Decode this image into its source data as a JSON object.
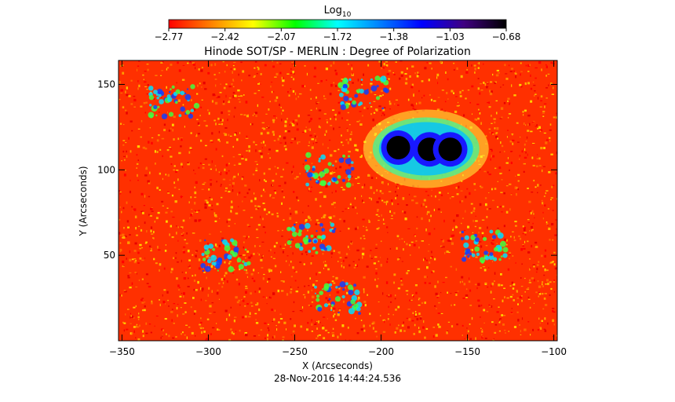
{
  "chart_data": {
    "type": "heatmap",
    "title": "Hinode SOT/SP - MERLIN : Degree of Polarization",
    "xlabel": "X (Arcseconds)",
    "ylabel": "Y (Arcseconds)",
    "timestamp": "28-Nov-2016 14:44:24.536",
    "xlim": [
      -352,
      -98
    ],
    "ylim": [
      0,
      164
    ],
    "x_ticks": [
      {
        "value": -350,
        "label": "−350"
      },
      {
        "value": -300,
        "label": "−300"
      },
      {
        "value": -250,
        "label": "−250"
      },
      {
        "value": -200,
        "label": "−200"
      },
      {
        "value": -150,
        "label": "−150"
      },
      {
        "value": -100,
        "label": "−100"
      }
    ],
    "y_ticks": [
      {
        "value": 50,
        "label": "50"
      },
      {
        "value": 100,
        "label": "100"
      },
      {
        "value": 150,
        "label": "150"
      }
    ],
    "colorbar": {
      "label_base": "Log",
      "label_sub": "10",
      "range": [
        -2.77,
        -0.68
      ],
      "tick_labels": [
        "−2.77",
        "−2.42",
        "−2.07",
        "−1.72",
        "−1.38",
        "−1.03",
        "−0.68"
      ],
      "colormap": [
        "#ff0000",
        "#ff8000",
        "#ffff00",
        "#00ff00",
        "#00ffff",
        "#0080ff",
        "#0000ff",
        "#400080",
        "#000000"
      ]
    },
    "features": [
      {
        "kind": "sunspot",
        "x": -190,
        "y": 113,
        "value": -0.75
      },
      {
        "kind": "sunspot",
        "x": -172,
        "y": 112,
        "value": -0.72
      },
      {
        "kind": "sunspot",
        "x": -160,
        "y": 112,
        "value": -0.7
      },
      {
        "kind": "network",
        "x": -230,
        "y": 100,
        "value": -1.6
      },
      {
        "kind": "network",
        "x": -240,
        "y": 60,
        "value": -1.5
      },
      {
        "kind": "network",
        "x": -290,
        "y": 50,
        "value": -1.6
      },
      {
        "kind": "network",
        "x": -140,
        "y": 55,
        "value": -1.4
      },
      {
        "kind": "network",
        "x": -320,
        "y": 140,
        "value": -1.7
      },
      {
        "kind": "network",
        "x": -210,
        "y": 145,
        "value": -1.6
      },
      {
        "kind": "network",
        "x": -225,
        "y": 25,
        "value": -1.7
      }
    ]
  }
}
